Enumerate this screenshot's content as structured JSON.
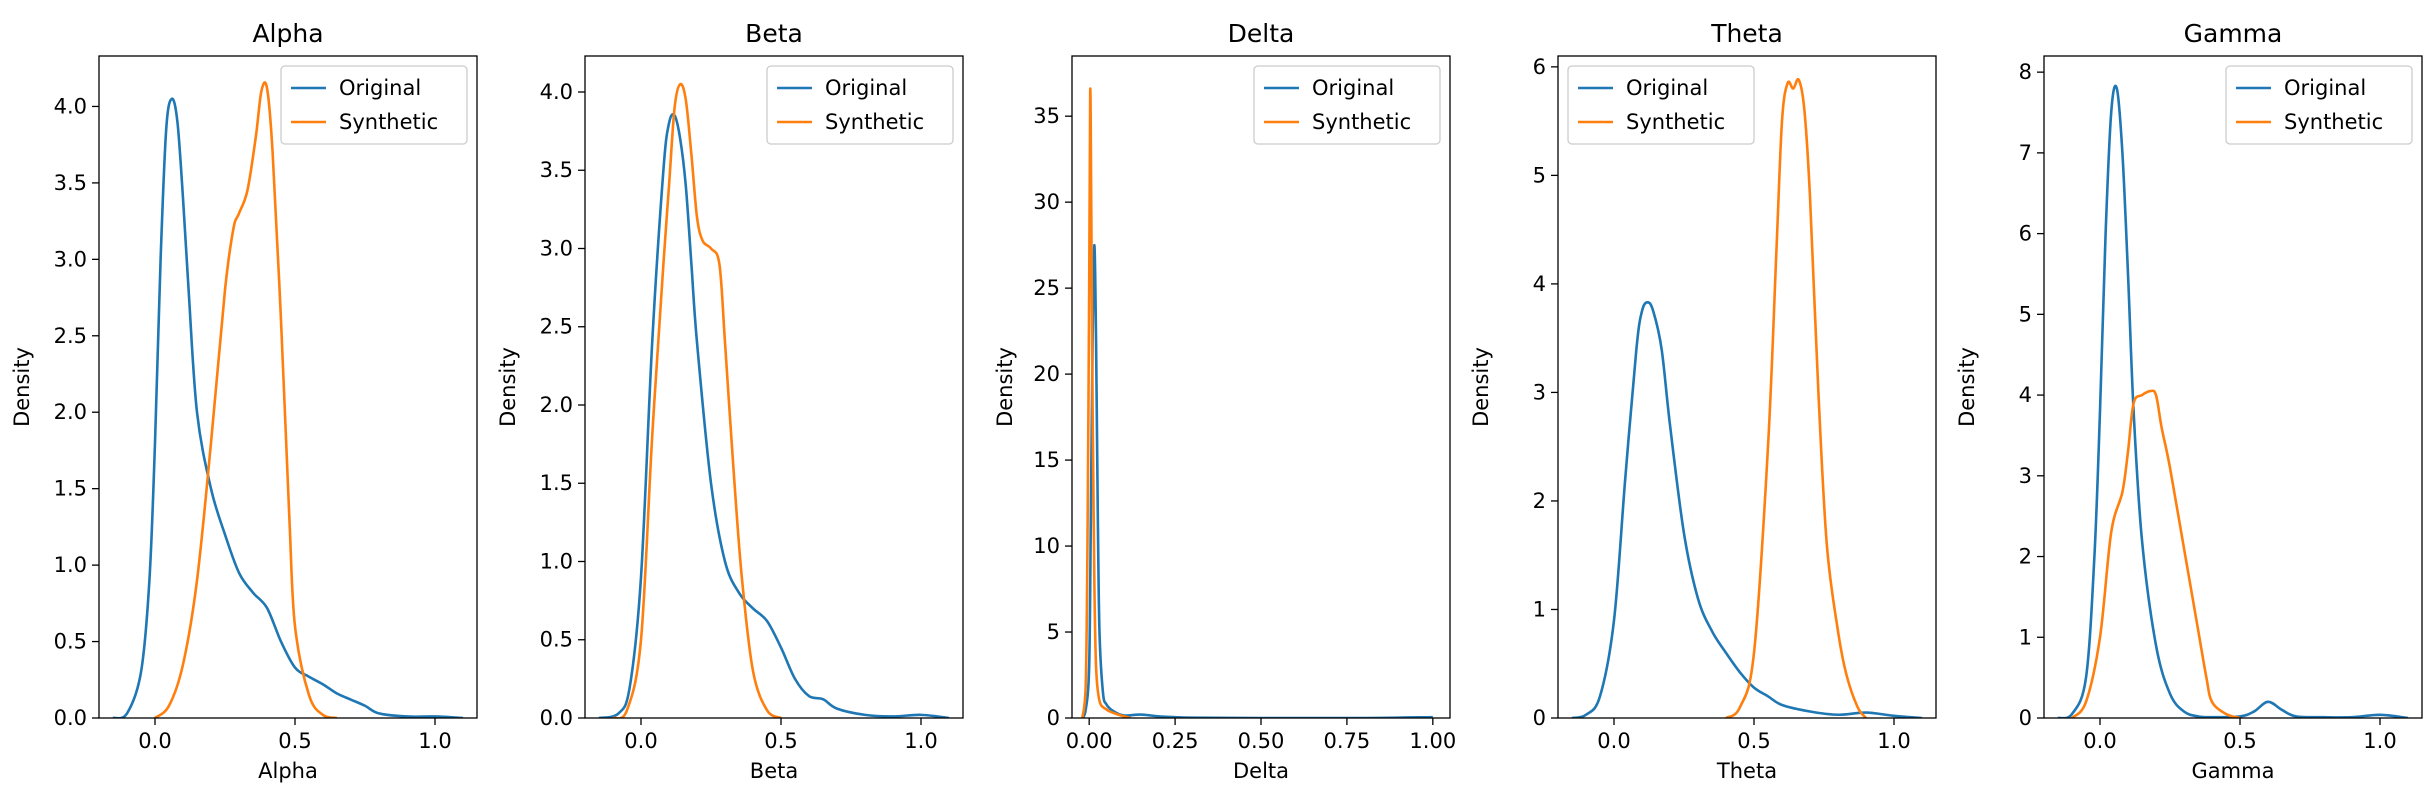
{
  "colors": {
    "original": "#1f77b4",
    "synthetic": "#ff7f0e"
  },
  "legend": [
    "Original",
    "Synthetic"
  ],
  "chart_data": [
    {
      "type": "line",
      "title": "Alpha",
      "xlabel": "Alpha",
      "ylabel": "Density",
      "xlim": [
        -0.2,
        1.15
      ],
      "ylim": [
        0,
        4.33
      ],
      "xticks": [
        0.0,
        0.5,
        1.0
      ],
      "xtick_labels": [
        "0.0",
        "0.5",
        "1.0"
      ],
      "yticks": [
        0,
        0.5,
        1.0,
        1.5,
        2.0,
        2.5,
        3.0,
        3.5,
        4.0
      ],
      "ytick_labels": [
        "0.0",
        "0.5",
        "1.0",
        "1.5",
        "2.0",
        "2.5",
        "3.0",
        "3.5",
        "4.0"
      ],
      "legend_position": "top-right",
      "series": [
        {
          "name": "Original",
          "x": [
            -0.15,
            -0.1,
            -0.05,
            -0.02,
            0.0,
            0.02,
            0.04,
            0.06,
            0.08,
            0.1,
            0.12,
            0.15,
            0.2,
            0.25,
            0.3,
            0.35,
            0.4,
            0.45,
            0.5,
            0.55,
            0.6,
            0.65,
            0.7,
            0.75,
            0.8,
            0.9,
            1.0,
            1.1
          ],
          "y": [
            0,
            0.03,
            0.3,
            0.9,
            1.8,
            3.0,
            3.85,
            4.05,
            3.9,
            3.4,
            2.8,
            2.0,
            1.5,
            1.2,
            0.95,
            0.82,
            0.72,
            0.5,
            0.33,
            0.27,
            0.22,
            0.16,
            0.12,
            0.08,
            0.03,
            0.01,
            0.01,
            0
          ]
        },
        {
          "name": "Synthetic",
          "x": [
            0.0,
            0.05,
            0.1,
            0.15,
            0.2,
            0.25,
            0.28,
            0.3,
            0.33,
            0.36,
            0.38,
            0.4,
            0.42,
            0.45,
            0.48,
            0.5,
            0.55,
            0.6,
            0.65
          ],
          "y": [
            0,
            0.08,
            0.35,
            0.9,
            1.8,
            2.8,
            3.2,
            3.3,
            3.45,
            3.8,
            4.1,
            4.12,
            3.7,
            2.6,
            1.3,
            0.6,
            0.15,
            0.02,
            0
          ]
        }
      ]
    },
    {
      "type": "line",
      "title": "Beta",
      "xlabel": "Beta",
      "ylabel": "Density",
      "xlim": [
        -0.2,
        1.15
      ],
      "ylim": [
        0,
        4.23
      ],
      "xticks": [
        0.0,
        0.5,
        1.0
      ],
      "xtick_labels": [
        "0.0",
        "0.5",
        "1.0"
      ],
      "yticks": [
        0,
        0.5,
        1.0,
        1.5,
        2.0,
        2.5,
        3.0,
        3.5,
        4.0
      ],
      "ytick_labels": [
        "0.0",
        "0.5",
        "1.0",
        "1.5",
        "2.0",
        "2.5",
        "3.0",
        "3.5",
        "4.0"
      ],
      "legend_position": "top-right",
      "series": [
        {
          "name": "Original",
          "x": [
            -0.15,
            -0.08,
            -0.04,
            0.0,
            0.04,
            0.08,
            0.1,
            0.12,
            0.14,
            0.16,
            0.18,
            0.2,
            0.25,
            0.3,
            0.35,
            0.4,
            0.45,
            0.5,
            0.55,
            0.6,
            0.65,
            0.7,
            0.8,
            0.9,
            1.0,
            1.1
          ],
          "y": [
            0,
            0.03,
            0.2,
            0.9,
            2.4,
            3.5,
            3.8,
            3.85,
            3.7,
            3.4,
            2.9,
            2.4,
            1.5,
            1.0,
            0.8,
            0.7,
            0.62,
            0.45,
            0.25,
            0.14,
            0.12,
            0.06,
            0.02,
            0.01,
            0.02,
            0
          ]
        },
        {
          "name": "Synthetic",
          "x": [
            -0.1,
            -0.05,
            0.0,
            0.04,
            0.08,
            0.1,
            0.12,
            0.14,
            0.16,
            0.18,
            0.2,
            0.22,
            0.25,
            0.28,
            0.3,
            0.33,
            0.36,
            0.4,
            0.45,
            0.5
          ],
          "y": [
            0,
            0.05,
            0.5,
            1.8,
            2.9,
            3.4,
            3.9,
            4.05,
            3.95,
            3.6,
            3.2,
            3.05,
            3.0,
            2.9,
            2.4,
            1.6,
            0.9,
            0.3,
            0.05,
            0
          ]
        }
      ]
    },
    {
      "type": "line",
      "title": "Delta",
      "xlabel": "Delta",
      "ylabel": "Density",
      "xlim": [
        -0.05,
        1.05
      ],
      "ylim": [
        0,
        38.5
      ],
      "xticks": [
        0.0,
        0.25,
        0.5,
        0.75,
        1.0
      ],
      "xtick_labels": [
        "0.00",
        "0.25",
        "0.50",
        "0.75",
        "1.00"
      ],
      "yticks": [
        0,
        5,
        10,
        15,
        20,
        25,
        30,
        35
      ],
      "ytick_labels": [
        "0",
        "5",
        "10",
        "15",
        "20",
        "25",
        "30",
        "35"
      ],
      "legend_position": "top-right",
      "series": [
        {
          "name": "Original",
          "x": [
            -0.02,
            -0.01,
            0.0,
            0.005,
            0.01,
            0.015,
            0.02,
            0.025,
            0.03,
            0.04,
            0.05,
            0.07,
            0.1,
            0.15,
            0.2,
            0.25,
            0.3,
            0.5,
            0.8,
            1.0
          ],
          "y": [
            0,
            0.5,
            3,
            12,
            22,
            27.5,
            22,
            12,
            5,
            1.5,
            0.8,
            0.4,
            0.15,
            0.2,
            0.1,
            0.05,
            0.02,
            0,
            0,
            0.05
          ]
        },
        {
          "name": "Synthetic",
          "x": [
            -0.02,
            -0.01,
            -0.005,
            0.0,
            0.003,
            0.006,
            0.01,
            0.015,
            0.02,
            0.03,
            0.05,
            0.07,
            0.1,
            0.12
          ],
          "y": [
            0,
            2,
            10,
            25,
            36.5,
            30,
            18,
            8,
            3,
            1,
            0.5,
            0.3,
            0.1,
            0
          ]
        }
      ]
    },
    {
      "type": "line",
      "title": "Theta",
      "xlabel": "Theta",
      "ylabel": "Density",
      "xlim": [
        -0.2,
        1.15
      ],
      "ylim": [
        0,
        6.1
      ],
      "xticks": [
        0.0,
        0.5,
        1.0
      ],
      "xtick_labels": [
        "0.0",
        "0.5",
        "1.0"
      ],
      "yticks": [
        0,
        1,
        2,
        3,
        4,
        5,
        6
      ],
      "ytick_labels": [
        "0",
        "1",
        "2",
        "3",
        "4",
        "5",
        "6"
      ],
      "legend_position": "top-left",
      "series": [
        {
          "name": "Original",
          "x": [
            -0.15,
            -0.1,
            -0.05,
            0.0,
            0.04,
            0.08,
            0.1,
            0.12,
            0.14,
            0.17,
            0.2,
            0.25,
            0.3,
            0.35,
            0.4,
            0.45,
            0.5,
            0.55,
            0.6,
            0.7,
            0.8,
            0.9,
            1.0,
            1.1
          ],
          "y": [
            0,
            0.03,
            0.2,
            0.9,
            2.2,
            3.4,
            3.75,
            3.83,
            3.75,
            3.4,
            2.7,
            1.7,
            1.1,
            0.8,
            0.6,
            0.42,
            0.28,
            0.2,
            0.12,
            0.06,
            0.03,
            0.05,
            0.02,
            0
          ]
        },
        {
          "name": "Synthetic",
          "x": [
            0.4,
            0.45,
            0.5,
            0.55,
            0.58,
            0.6,
            0.62,
            0.64,
            0.66,
            0.68,
            0.7,
            0.73,
            0.76,
            0.8,
            0.83,
            0.87,
            0.9
          ],
          "y": [
            0,
            0.1,
            0.6,
            2.5,
            4.3,
            5.5,
            5.85,
            5.8,
            5.88,
            5.6,
            4.8,
            3.0,
            1.6,
            0.8,
            0.4,
            0.1,
            0
          ]
        }
      ]
    },
    {
      "type": "line",
      "title": "Gamma",
      "xlabel": "Gamma",
      "ylabel": "Density",
      "xlim": [
        -0.2,
        1.15
      ],
      "ylim": [
        0,
        8.2
      ],
      "xticks": [
        0.0,
        0.5,
        1.0
      ],
      "xtick_labels": [
        "0.0",
        "0.5",
        "1.0"
      ],
      "yticks": [
        0,
        1,
        2,
        3,
        4,
        5,
        6,
        7,
        8
      ],
      "ytick_labels": [
        "0",
        "1",
        "2",
        "3",
        "4",
        "5",
        "6",
        "7",
        "8"
      ],
      "legend_position": "top-right",
      "series": [
        {
          "name": "Original",
          "x": [
            -0.15,
            -0.1,
            -0.05,
            -0.02,
            0.0,
            0.02,
            0.04,
            0.06,
            0.08,
            0.1,
            0.12,
            0.15,
            0.2,
            0.25,
            0.3,
            0.35,
            0.4,
            0.5,
            0.55,
            0.6,
            0.65,
            0.7,
            0.8,
            0.9,
            1.0,
            1.1
          ],
          "y": [
            0,
            0.05,
            0.5,
            2.0,
            3.8,
            6.0,
            7.5,
            7.8,
            7.0,
            5.5,
            3.8,
            2.2,
            0.9,
            0.3,
            0.08,
            0.02,
            0.01,
            0.02,
            0.08,
            0.2,
            0.1,
            0.02,
            0.01,
            0.01,
            0.04,
            0
          ]
        },
        {
          "name": "Synthetic",
          "x": [
            -0.1,
            -0.05,
            0.0,
            0.04,
            0.08,
            0.1,
            0.12,
            0.15,
            0.18,
            0.2,
            0.22,
            0.25,
            0.3,
            0.35,
            0.38,
            0.4,
            0.45,
            0.5
          ],
          "y": [
            0,
            0.2,
            1.0,
            2.3,
            2.8,
            3.3,
            3.9,
            4.0,
            4.05,
            4.0,
            3.6,
            3.1,
            2.1,
            1.1,
            0.5,
            0.2,
            0.05,
            0
          ]
        }
      ]
    }
  ]
}
